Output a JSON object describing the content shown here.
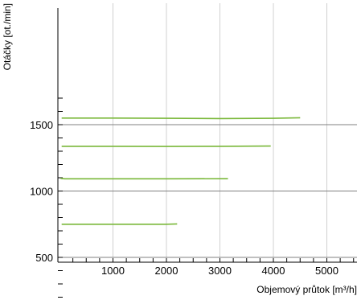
{
  "chart_data": {
    "type": "line",
    "xlabel": "Objemový průtok [m³/h]",
    "ylabel": "Otáčky [ot./min]",
    "xlim": [
      0,
      5600
    ],
    "ylim": [
      150,
      1730
    ],
    "x_ticks": [
      1000,
      2000,
      3000,
      4000,
      5000
    ],
    "y_ticks": [
      500,
      1000,
      1500
    ],
    "grid": {
      "vertical": true,
      "horizontal_at": [
        500,
        1000,
        1500
      ]
    },
    "series": [
      {
        "x": [
          40,
          1000,
          2000,
          3000,
          4000,
          4500
        ],
        "y": [
          1550,
          1550,
          1548,
          1546,
          1548,
          1552
        ]
      },
      {
        "x": [
          40,
          1000,
          2000,
          3000,
          3950
        ],
        "y": [
          1337,
          1337,
          1336,
          1337,
          1339
        ]
      },
      {
        "x": [
          20,
          100,
          1000,
          2000,
          3150
        ],
        "y": [
          1095,
          1092,
          1092,
          1092,
          1093
        ]
      },
      {
        "x": [
          40,
          1000,
          2000,
          2200
        ],
        "y": [
          750,
          750,
          750,
          752
        ]
      }
    ],
    "colors": {
      "series": "#7ab83a",
      "grid": "#d0d0d0",
      "hgrid": "#808080",
      "axis": "#000000"
    }
  }
}
